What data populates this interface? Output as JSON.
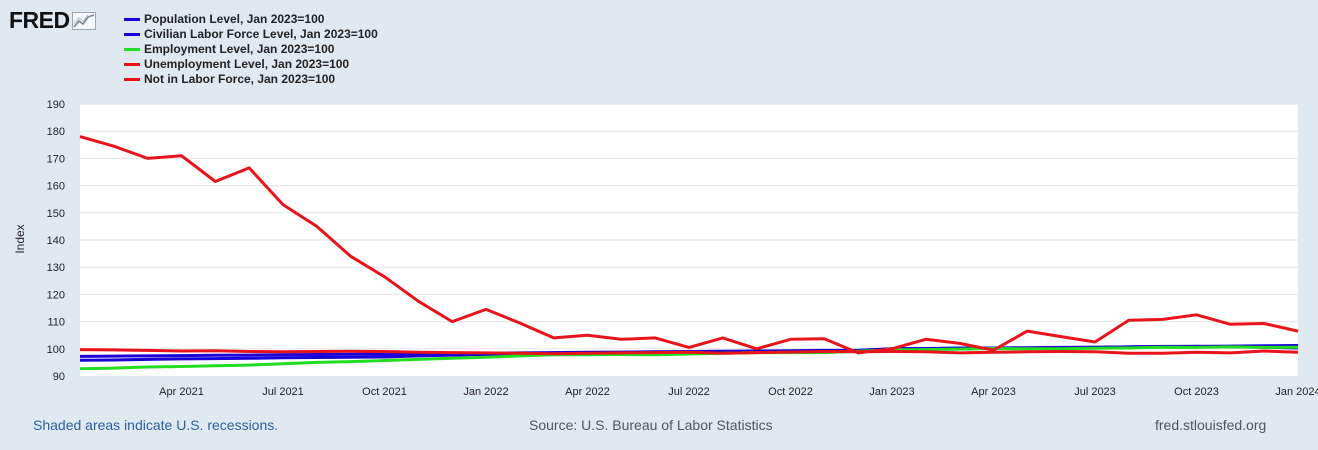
{
  "logo": {
    "text": "FRED",
    "icon": "line-chart-icon"
  },
  "legend": [
    {
      "label": "Population Level, Jan 2023=100",
      "color": "#1a00d6"
    },
    {
      "label": "Civilian Labor Force Level, Jan 2023=100",
      "color": "#1a00d6"
    },
    {
      "label": "Employment Level, Jan 2023=100",
      "color": "#22dd22"
    },
    {
      "label": "Unemployment Level, Jan 2023=100",
      "color": "#e8141b"
    },
    {
      "label": "Not in Labor Force, Jan 2023=100",
      "color": "#e8141b"
    }
  ],
  "footer": {
    "left": "Shaded areas indicate U.S. recessions.",
    "center": "Source: U.S. Bureau of Labor Statistics",
    "right": "fred.stlouisfed.org"
  },
  "chart_data": {
    "type": "line",
    "ylabel": "Index",
    "ylim": [
      90,
      190
    ],
    "yticks": [
      90,
      100,
      110,
      120,
      130,
      140,
      150,
      160,
      170,
      180,
      190
    ],
    "xlim": [
      "2021-01",
      "2024-01"
    ],
    "xticks": [
      {
        "date": "2021-04",
        "label": "Apr 2021"
      },
      {
        "date": "2021-07",
        "label": "Jul 2021"
      },
      {
        "date": "2021-10",
        "label": "Oct 2021"
      },
      {
        "date": "2022-01",
        "label": "Jan 2022"
      },
      {
        "date": "2022-04",
        "label": "Apr 2022"
      },
      {
        "date": "2022-07",
        "label": "Jul 2022"
      },
      {
        "date": "2022-10",
        "label": "Oct 2022"
      },
      {
        "date": "2023-01",
        "label": "Jan 2023"
      },
      {
        "date": "2023-04",
        "label": "Apr 2023"
      },
      {
        "date": "2023-07",
        "label": "Jul 2023"
      },
      {
        "date": "2023-10",
        "label": "Oct 2023"
      },
      {
        "date": "2024-01",
        "label": "Jan 2024"
      }
    ],
    "grid": true,
    "x": [
      "2021-01",
      "2021-02",
      "2021-03",
      "2021-04",
      "2021-05",
      "2021-06",
      "2021-07",
      "2021-08",
      "2021-09",
      "2021-10",
      "2021-11",
      "2021-12",
      "2022-01",
      "2022-02",
      "2022-03",
      "2022-04",
      "2022-05",
      "2022-06",
      "2022-07",
      "2022-08",
      "2022-09",
      "2022-10",
      "2022-11",
      "2022-12",
      "2023-01",
      "2023-02",
      "2023-03",
      "2023-04",
      "2023-05",
      "2023-06",
      "2023-07",
      "2023-08",
      "2023-09",
      "2023-10",
      "2023-11",
      "2023-12",
      "2024-01"
    ],
    "series": [
      {
        "name": "Population Level, Jan 2023=100",
        "color": "#1a00d6",
        "values": [
          97.2,
          97.3,
          97.4,
          97.5,
          97.6,
          97.7,
          97.8,
          97.9,
          98.0,
          98.1,
          98.2,
          98.3,
          98.4,
          98.5,
          98.6,
          98.7,
          98.8,
          98.9,
          99.0,
          99.1,
          99.2,
          99.3,
          99.4,
          99.5,
          100.0,
          100.1,
          100.2,
          100.3,
          100.4,
          100.5,
          100.6,
          100.7,
          100.8,
          100.9,
          101.0,
          101.1,
          101.2
        ]
      },
      {
        "name": "Civilian Labor Force Level, Jan 2023=100",
        "color": "#1a00d6",
        "values": [
          95.8,
          95.9,
          96.1,
          96.3,
          96.4,
          96.5,
          96.7,
          96.8,
          96.9,
          97.0,
          97.4,
          97.7,
          97.9,
          98.2,
          98.5,
          98.4,
          98.5,
          98.4,
          98.4,
          98.8,
          99.0,
          99.0,
          99.0,
          99.3,
          100.0,
          100.0,
          100.3,
          100.2,
          100.3,
          100.4,
          100.5,
          100.7,
          100.9,
          100.9,
          100.8,
          100.6,
          100.3
        ]
      },
      {
        "name": "Employment Level, Jan 2023=100",
        "color": "#22dd22",
        "values": [
          92.7,
          92.9,
          93.3,
          93.5,
          93.8,
          94.0,
          94.5,
          95.0,
          95.3,
          95.7,
          96.1,
          96.5,
          96.9,
          97.4,
          97.8,
          97.8,
          97.9,
          97.8,
          98.1,
          98.4,
          98.6,
          98.6,
          98.6,
          99.1,
          99.6,
          99.7,
          99.9,
          100.1,
          100.0,
          100.0,
          100.2,
          100.3,
          100.6,
          100.5,
          100.7,
          100.5,
          100.6
        ]
      },
      {
        "name": "Unemployment Level, Jan 2023=100",
        "color": "#e8141b",
        "values": [
          178.0,
          174.5,
          170.0,
          171.0,
          161.5,
          166.5,
          153.0,
          145.0,
          134.0,
          126.5,
          117.5,
          110.0,
          114.5,
          109.5,
          104.0,
          105.0,
          103.5,
          104.0,
          100.5,
          104.0,
          100.0,
          103.5,
          103.7,
          98.5,
          100.0,
          103.5,
          102.0,
          99.5,
          106.5,
          104.5,
          102.5,
          110.5,
          110.8,
          112.5,
          109.0,
          109.3,
          106.5
        ]
      },
      {
        "name": "Not in Labor Force, Jan 2023=100",
        "color": "#e8141b",
        "values": [
          99.7,
          99.6,
          99.4,
          99.2,
          99.3,
          99.0,
          98.9,
          99.0,
          99.1,
          99.0,
          98.7,
          98.6,
          98.5,
          98.4,
          98.2,
          98.4,
          98.5,
          98.6,
          98.7,
          98.4,
          98.6,
          98.8,
          99.0,
          98.9,
          99.0,
          98.9,
          98.5,
          98.7,
          98.9,
          99.0,
          98.9,
          98.4,
          98.4,
          98.7,
          98.5,
          99.2,
          98.7
        ]
      }
    ]
  }
}
